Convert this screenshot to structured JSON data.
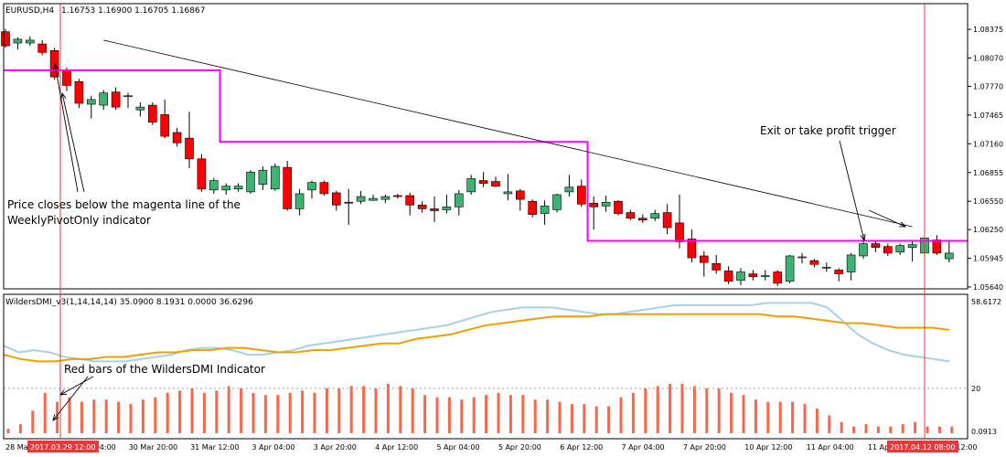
{
  "header": {
    "symbol": "EURUSD,H4",
    "ohlc": "1.16753 1.16900 1.16705 1.16867"
  },
  "indicator_header": "WildersDMI_v3(1,14,14,14) 35.0900 8.1931 0.0000 36.6296",
  "annotations": {
    "price_note_line1": "Price closes below the magenta line of the",
    "price_note_line2": "WeeklyPivotOnly indicator",
    "exit_note": "Exit or take profit trigger",
    "red_bars_note": "Red bars of the WildersDMI Indicator"
  },
  "time_axis": {
    "labels": [
      "28 Mar 2017",
      "30 Mar 04:00",
      "30 Mar 20:00",
      "31 Mar 12:00",
      "3 Apr 04:00",
      "3 Apr 20:00",
      "4 Apr 12:00",
      "5 Apr 04:00",
      "5 Apr 20:00",
      "6 Apr 12:00",
      "7 Apr 04:00",
      "7 Apr 20:00",
      "10 Apr 12:00",
      "11 Apr 04:00",
      "11 Apr 20:00",
      "12 Apr 12:00"
    ],
    "highlight_left": "2017.03.29 12:00",
    "highlight_right": "2017.04.12 08:00"
  },
  "colors": {
    "bull": "#3cb371",
    "bear": "#ff0000",
    "pivot": "#ff00ff",
    "adx": "#f0a000",
    "di": "#a8d0e6",
    "hist": "#fa6648",
    "vline": "#e23b3b",
    "grid": "#c0c0c0",
    "highlight_bg": "#e23b3b"
  },
  "chart_data": [
    {
      "type": "candlestick",
      "title": "EURUSD,H4",
      "ylim": [
        1.0564,
        1.0857
      ],
      "y_ticks": [
        "1.08375",
        "1.08070",
        "1.07770",
        "1.07465",
        "1.07160",
        "1.06855",
        "1.06550",
        "1.06250",
        "1.05945",
        "1.05640"
      ],
      "candles": [
        [
          1.0835,
          1.0838,
          1.0818,
          1.082
        ],
        [
          1.0823,
          1.0829,
          1.0816,
          1.0827
        ],
        [
          1.0823,
          1.083,
          1.082,
          1.0826
        ],
        [
          1.0822,
          1.0826,
          1.081,
          1.0813
        ],
        [
          1.0815,
          1.0818,
          1.0784,
          1.0787
        ],
        [
          1.0794,
          1.0797,
          1.0772,
          1.0778
        ],
        [
          1.0782,
          1.0785,
          1.0754,
          1.0759
        ],
        [
          1.0758,
          1.0767,
          1.0743,
          1.0763
        ],
        [
          1.0757,
          1.0773,
          1.0752,
          1.077
        ],
        [
          1.0771,
          1.0776,
          1.0752,
          1.0755
        ],
        [
          1.0767,
          1.077,
          1.0754,
          1.0767
        ],
        [
          1.0752,
          1.076,
          1.0745,
          1.0755
        ],
        [
          1.0757,
          1.076,
          1.0736,
          1.0739
        ],
        [
          1.0747,
          1.0763,
          1.0722,
          1.0724
        ],
        [
          1.0728,
          1.0733,
          1.0713,
          1.0717
        ],
        [
          1.0722,
          1.075,
          1.069,
          1.07
        ],
        [
          1.07,
          1.0705,
          1.0665,
          1.0668
        ],
        [
          1.0667,
          1.068,
          1.0663,
          1.0677
        ],
        [
          1.0667,
          1.0674,
          1.0662,
          1.0671
        ],
        [
          1.0668,
          1.0674,
          1.0665,
          1.0671
        ],
        [
          1.0665,
          1.0688,
          1.0663,
          1.0686
        ],
        [
          1.0673,
          1.0692,
          1.0667,
          1.0688
        ],
        [
          1.0668,
          1.0695,
          1.0666,
          1.0692
        ],
        [
          1.0691,
          1.0698,
          1.0645,
          1.0647
        ],
        [
          1.0647,
          1.0668,
          1.064,
          1.0663
        ],
        [
          1.0667,
          1.0677,
          1.0658,
          1.0675
        ],
        [
          1.0675,
          1.0677,
          1.0661,
          1.0663
        ],
        [
          1.0664,
          1.0666,
          1.0645,
          1.0651
        ],
        [
          1.0654,
          1.0668,
          1.063,
          1.0653
        ],
        [
          1.0655,
          1.0666,
          1.0652,
          1.066
        ],
        [
          1.0656,
          1.0662,
          1.0656,
          1.0658
        ],
        [
          1.0657,
          1.0662,
          1.0653,
          1.066
        ],
        [
          1.0661,
          1.0663,
          1.0658,
          1.066
        ],
        [
          1.0661,
          1.0664,
          1.064,
          1.0651
        ],
        [
          1.0651,
          1.0655,
          1.0643,
          1.0647
        ],
        [
          1.0647,
          1.066,
          1.0633,
          1.0645
        ],
        [
          1.0646,
          1.0662,
          1.0642,
          1.0649
        ],
        [
          1.0649,
          1.0667,
          1.064,
          1.0663
        ],
        [
          1.0665,
          1.0683,
          1.0662,
          1.0679
        ],
        [
          1.0677,
          1.0686,
          1.067,
          1.0674
        ],
        [
          1.0676,
          1.0681,
          1.067,
          1.0671
        ],
        [
          1.0663,
          1.0684,
          1.0656,
          1.0665
        ],
        [
          1.0666,
          1.0668,
          1.0645,
          1.0657
        ],
        [
          1.0655,
          1.0657,
          1.0638,
          1.0641
        ],
        [
          1.0642,
          1.0656,
          1.063,
          1.065
        ],
        [
          1.0646,
          1.0663,
          1.0643,
          1.0662
        ],
        [
          1.0665,
          1.0683,
          1.066,
          1.067
        ],
        [
          1.0671,
          1.0678,
          1.0649,
          1.0652
        ],
        [
          1.0653,
          1.066,
          1.0625,
          1.0649
        ],
        [
          1.065,
          1.0661,
          1.0644,
          1.0654
        ],
        [
          1.0655,
          1.0656,
          1.064,
          1.0642
        ],
        [
          1.0643,
          1.0646,
          1.0635,
          1.0637
        ],
        [
          1.0637,
          1.0641,
          1.0632,
          1.0635
        ],
        [
          1.0637,
          1.0646,
          1.0634,
          1.0642
        ],
        [
          1.0643,
          1.0652,
          1.062,
          1.0627
        ],
        [
          1.0632,
          1.0662,
          1.0605,
          1.0612
        ],
        [
          1.0615,
          1.0625,
          1.059,
          1.0595
        ],
        [
          1.0597,
          1.0602,
          1.0575,
          1.059
        ],
        [
          1.0589,
          1.0598,
          1.0578,
          1.0582
        ],
        [
          1.0581,
          1.0586,
          1.0567,
          1.057
        ],
        [
          1.0571,
          1.0584,
          1.0566,
          1.058
        ],
        [
          1.0578,
          1.0582,
          1.0571,
          1.0575
        ],
        [
          1.0576,
          1.0582,
          1.0571,
          1.0576
        ],
        [
          1.058,
          1.0582,
          1.0565,
          1.0568
        ],
        [
          1.057,
          1.0598,
          1.0568,
          1.0597
        ],
        [
          1.0595,
          1.06,
          1.0589,
          1.0596
        ],
        [
          1.0592,
          1.0594,
          1.0585,
          1.0588
        ],
        [
          1.0585,
          1.059,
          1.058,
          1.0585
        ],
        [
          1.0582,
          1.0584,
          1.057,
          1.0578
        ],
        [
          1.058,
          1.06,
          1.0571,
          1.0598
        ],
        [
          1.0597,
          1.062,
          1.0594,
          1.061
        ],
        [
          1.061,
          1.0614,
          1.0601,
          1.0606
        ],
        [
          1.0607,
          1.061,
          1.0597,
          1.06
        ],
        [
          1.0601,
          1.061,
          1.0598,
          1.0608
        ],
        [
          1.0606,
          1.0614,
          1.0591,
          1.0609
        ],
        [
          1.06,
          1.0618,
          1.0598,
          1.0616
        ],
        [
          1.0614,
          1.0619,
          1.0598,
          1.06
        ],
        [
          1.0594,
          1.0613,
          1.059,
          1.06
        ]
      ],
      "pivot_line": [
        {
          "from": 0,
          "to": 17,
          "price": 1.0794
        },
        {
          "from": 18,
          "to": 47,
          "price": 1.0718
        },
        {
          "from": 48,
          "to": 78,
          "price": 1.0613
        }
      ],
      "trendline": {
        "from": [
          8,
          1.0826
        ],
        "to": [
          74,
          1.0628
        ]
      }
    },
    {
      "type": "indicator",
      "title": "WildersDMI_v3(1,14,14,14)",
      "y_ticks": [
        "58.6172",
        "20",
        "0.0913"
      ],
      "histogram": [
        0,
        1.5,
        2,
        2,
        4,
        10,
        18,
        14,
        16,
        14,
        15,
        15,
        14,
        13,
        15,
        16,
        18,
        19,
        20,
        18,
        19,
        21,
        20,
        18,
        17,
        17,
        18,
        19,
        18,
        20,
        20,
        21,
        21,
        20,
        22,
        21,
        20,
        17,
        16,
        16,
        15,
        16,
        17,
        18,
        17,
        17,
        15,
        15,
        14,
        13,
        13,
        12,
        12,
        16,
        18,
        20,
        21,
        22,
        22,
        21,
        20,
        20,
        18,
        17,
        15,
        14,
        14,
        14,
        13,
        11,
        8,
        5,
        3,
        4,
        3,
        3,
        4,
        5,
        3,
        3,
        3,
        3
      ],
      "series": [
        {
          "values": [
            39,
            36,
            37,
            36,
            34,
            33,
            32,
            32,
            32,
            33,
            34,
            35,
            37,
            38,
            38,
            37,
            35,
            35,
            36,
            37,
            39,
            40,
            41,
            42,
            43,
            44,
            45,
            46,
            47,
            48,
            50,
            52,
            54,
            55,
            56,
            56,
            56,
            55,
            54,
            53,
            53,
            54,
            55,
            56,
            57,
            57,
            57,
            57,
            57,
            57,
            58,
            58,
            58,
            58,
            56,
            50,
            44,
            40,
            37,
            35,
            34,
            33,
            32
          ]
        },
        {
          "values": [
            35,
            33,
            32,
            32,
            33,
            33,
            34,
            34,
            35,
            36,
            36,
            37,
            37,
            38,
            38,
            37,
            36,
            36,
            37,
            37,
            38,
            39,
            40,
            40,
            42,
            43,
            44,
            46,
            48,
            49,
            50,
            51,
            52,
            52,
            52,
            53,
            53,
            53,
            53,
            53,
            53,
            53,
            53,
            53,
            53,
            52,
            52,
            51,
            50,
            49,
            49,
            48,
            47,
            47,
            47,
            46
          ]
        }
      ]
    }
  ]
}
